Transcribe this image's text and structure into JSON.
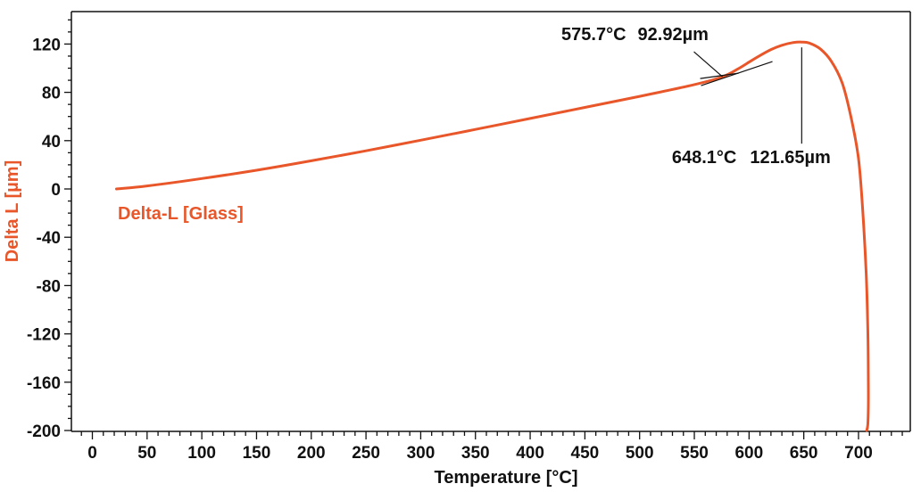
{
  "colors": {
    "series": "#e8562a",
    "axis": "#111111",
    "annotation": "#111111"
  },
  "chart_data": {
    "type": "line",
    "xlabel": "Temperature [°C]",
    "ylabel": "Delta L [µm]",
    "xlim": [
      -10,
      740
    ],
    "ylim": [
      -200,
      150
    ],
    "x_ticks": [
      0,
      50,
      100,
      150,
      200,
      250,
      300,
      350,
      400,
      450,
      500,
      550,
      600,
      650,
      700
    ],
    "y_ticks": [
      120,
      80,
      40,
      0,
      -40,
      -80,
      -120,
      -160,
      -200
    ],
    "y_tick_labels": [
      "120",
      "80",
      "40",
      "0",
      "-40",
      "-80",
      "-120",
      "-160",
      "-200"
    ],
    "grid": false,
    "series": [
      {
        "name": "Delta-L [Glass]",
        "x": [
          22,
          50,
          100,
          150,
          200,
          250,
          300,
          350,
          400,
          450,
          500,
          550,
          575.7,
          590,
          600,
          610,
          620,
          630,
          640,
          648.1,
          655,
          665,
          675,
          685,
          693,
          700,
          704,
          707,
          708.6,
          709,
          709,
          708.5,
          707.5
        ],
        "y": [
          0,
          2.5,
          8.6,
          15.5,
          23.3,
          31.6,
          40.4,
          49.3,
          58.4,
          67.5,
          76.7,
          86.4,
          92.92,
          99.5,
          105,
          110.5,
          115.4,
          119,
          121.2,
          121.65,
          120.8,
          116,
          106,
          88,
          60,
          25,
          -20,
          -70,
          -120,
          -160,
          -180,
          -195,
          -200
        ]
      }
    ],
    "annotations": [
      {
        "type": "onset",
        "x": 575.7,
        "y": 92.92,
        "temperature_label": "575.7°C",
        "value_label": "92.92µm"
      },
      {
        "type": "peak",
        "x": 648.1,
        "y": 121.65,
        "temperature_label": "648.1°C",
        "value_label": "121.65µm"
      }
    ]
  }
}
